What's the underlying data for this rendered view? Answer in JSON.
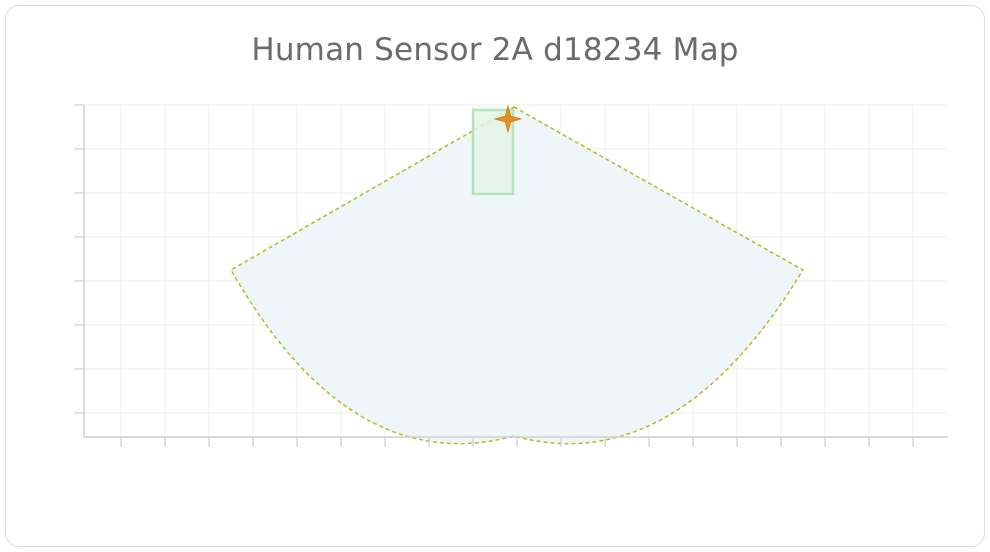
{
  "card": {
    "title": "Human Sensor 2A d18234 Map"
  },
  "map": {
    "grid": true,
    "colors": {
      "grid": "#ececec",
      "axis": "#cfcfcf",
      "coverage_fill": "#eef6fa",
      "coverage_stroke": "#b4bb1e",
      "zone_fill": "#e3f4e5",
      "zone_stroke": "#b4e3b8",
      "sensor": "#e59022"
    },
    "icons": {
      "sensor": "sensor-star-icon"
    }
  }
}
